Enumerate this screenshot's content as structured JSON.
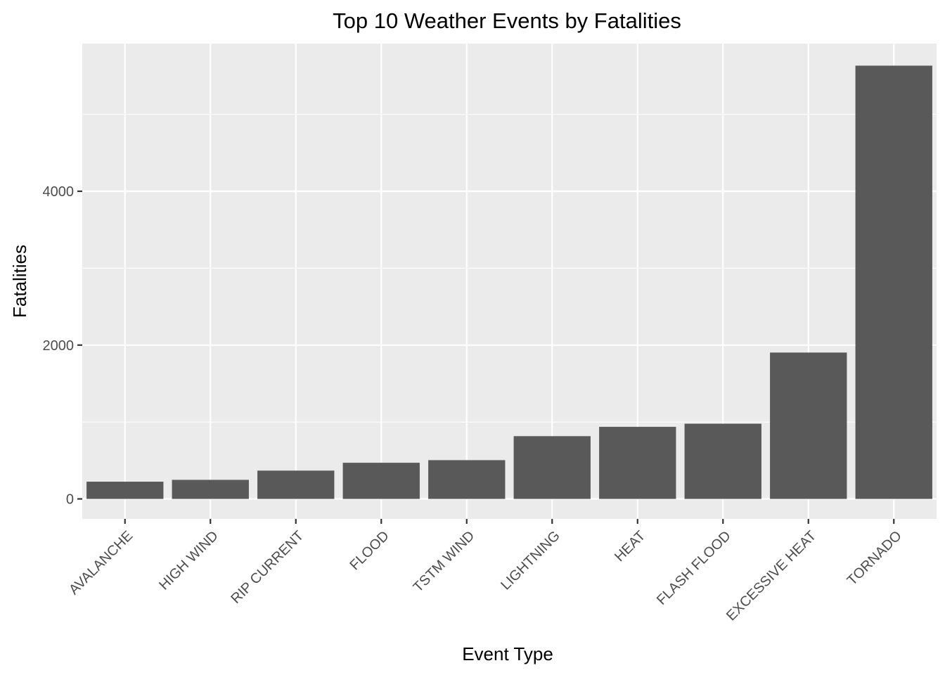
{
  "chart_data": {
    "type": "bar",
    "title": "Top 10 Weather Events by Fatalities",
    "xlabel": "Event Type",
    "ylabel": "Fatalities",
    "categories": [
      "AVALANCHE",
      "HIGH WIND",
      "RIP CURRENT",
      "FLOOD",
      "TSTM WIND",
      "LIGHTNING",
      "HEAT",
      "FLASH FLOOD",
      "EXCESSIVE HEAT",
      "TORNADO"
    ],
    "values": [
      224,
      248,
      368,
      470,
      504,
      816,
      937,
      978,
      1903,
      5633
    ],
    "ylim": [
      -260,
      5920
    ],
    "yticks": [
      0,
      2000,
      4000
    ],
    "y_minor_ticks": [
      1000,
      3000,
      5000
    ],
    "grid": true,
    "legend": "none",
    "colors": {
      "bar": "#595959",
      "panel": "#ebebeb",
      "grid": "#ffffff",
      "tick": "#333333"
    }
  }
}
